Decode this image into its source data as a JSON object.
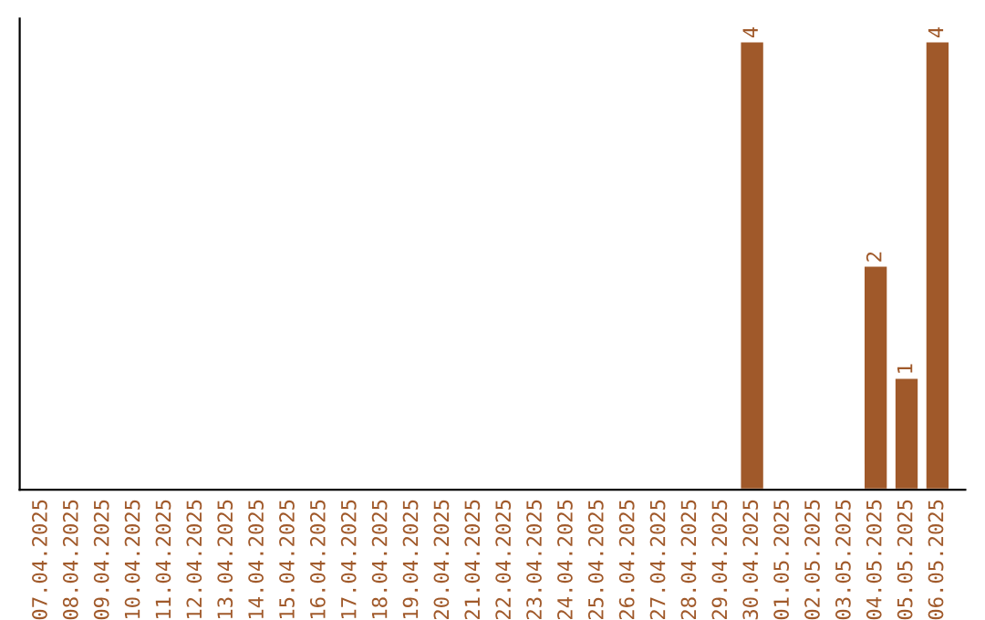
{
  "chart_data": {
    "type": "bar",
    "categories": [
      "07.04.2025",
      "08.04.2025",
      "09.04.2025",
      "10.04.2025",
      "11.04.2025",
      "12.04.2025",
      "13.04.2025",
      "14.04.2025",
      "15.04.2025",
      "16.04.2025",
      "17.04.2025",
      "18.04.2025",
      "19.04.2025",
      "20.04.2025",
      "21.04.2025",
      "22.04.2025",
      "23.04.2025",
      "24.04.2025",
      "25.04.2025",
      "26.04.2025",
      "27.04.2025",
      "28.04.2025",
      "29.04.2025",
      "30.04.2025",
      "01.05.2025",
      "02.05.2025",
      "03.05.2025",
      "04.05.2025",
      "05.05.2025",
      "06.05.2025"
    ],
    "values": [
      null,
      null,
      null,
      null,
      null,
      null,
      null,
      null,
      null,
      null,
      null,
      null,
      null,
      null,
      null,
      null,
      null,
      null,
      null,
      null,
      null,
      null,
      null,
      4,
      null,
      null,
      null,
      2,
      1,
      4
    ],
    "value_labels": [
      null,
      null,
      null,
      null,
      null,
      null,
      null,
      null,
      null,
      null,
      null,
      null,
      null,
      null,
      null,
      null,
      null,
      null,
      null,
      null,
      null,
      null,
      null,
      "4",
      null,
      null,
      null,
      "2",
      "1",
      "4"
    ],
    "color": "#a0592a",
    "grid": false,
    "legend": false,
    "tick_labels": "x"
  }
}
